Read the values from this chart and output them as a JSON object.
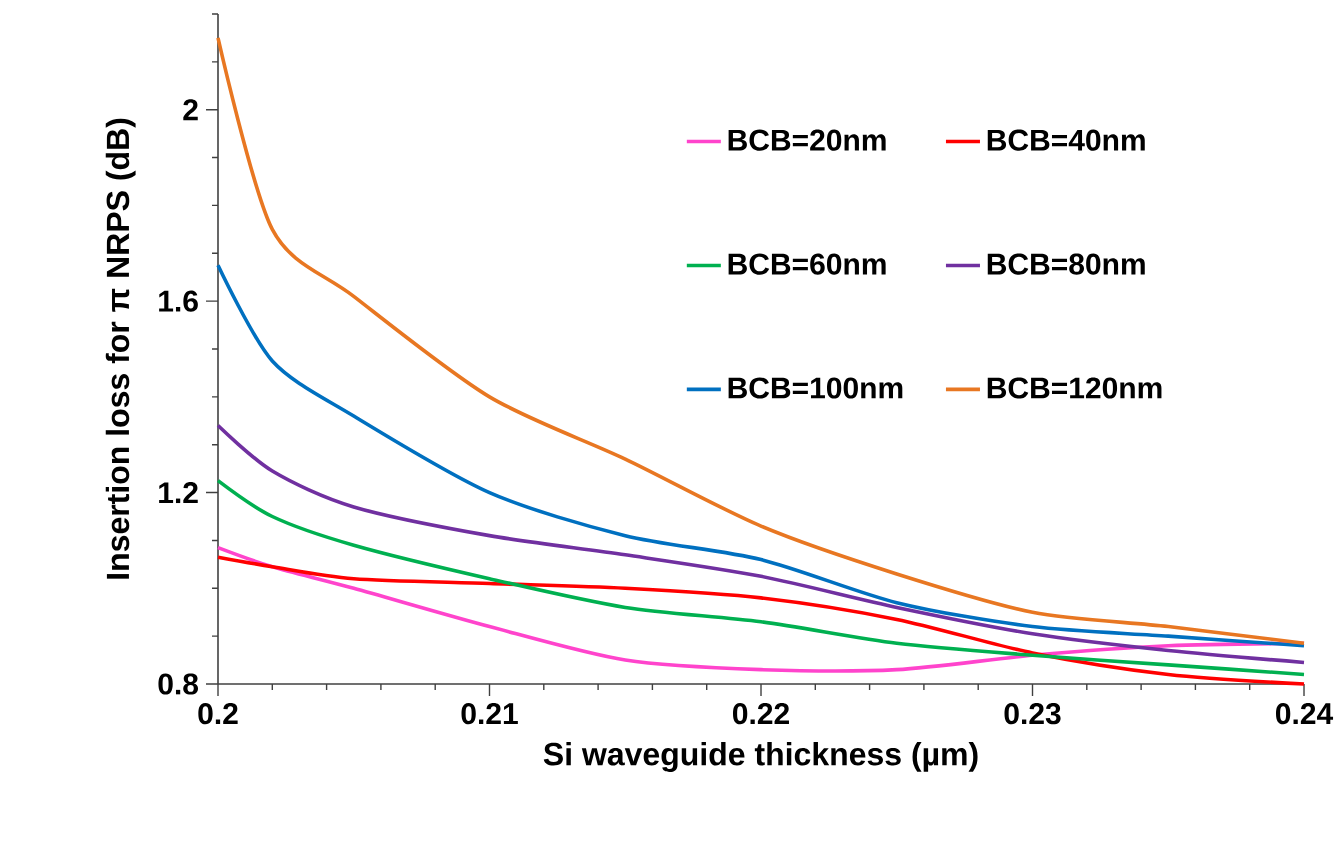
{
  "chart_data": {
    "type": "line",
    "xlabel": "Si waveguide thickness (µm)",
    "ylabel": "Insertion loss for π NRPS (dB)",
    "xlim": [
      0.2,
      0.24
    ],
    "ylim": [
      0.8,
      2.2
    ],
    "xticks": [
      0.2,
      {
        "value": 0.202,
        "label": null
      },
      {
        "value": 0.204,
        "label": null
      },
      {
        "value": 0.206,
        "label": null
      },
      {
        "value": 0.208,
        "label": null
      },
      0.21,
      {
        "value": 0.212,
        "label": null
      },
      {
        "value": 0.214,
        "label": null
      },
      {
        "value": 0.216,
        "label": null
      },
      {
        "value": 0.218,
        "label": null
      },
      0.22,
      {
        "value": 0.222,
        "label": null
      },
      {
        "value": 0.224,
        "label": null
      },
      {
        "value": 0.226,
        "label": null
      },
      {
        "value": 0.228,
        "label": null
      },
      0.23,
      {
        "value": 0.232,
        "label": null
      },
      {
        "value": 0.234,
        "label": null
      },
      {
        "value": 0.236,
        "label": null
      },
      {
        "value": 0.238,
        "label": null
      },
      0.24
    ],
    "yticks": [
      0.8,
      {
        "value": 0.9,
        "label": null
      },
      {
        "value": 1.0,
        "label": null
      },
      {
        "value": 1.1,
        "label": null
      },
      1.2,
      {
        "value": 1.3,
        "label": null
      },
      {
        "value": 1.4,
        "label": null
      },
      {
        "value": 1.5,
        "label": null
      },
      1.6,
      {
        "value": 1.7,
        "label": null
      },
      {
        "value": 1.8,
        "label": null
      },
      {
        "value": 1.9,
        "label": null
      },
      2,
      {
        "value": 2.1,
        "label": null
      },
      {
        "value": 2.2,
        "label": null
      }
    ],
    "x": [
      0.2,
      0.202,
      0.205,
      0.21,
      0.215,
      0.22,
      0.225,
      0.23,
      0.235,
      0.24
    ],
    "legend": "top right",
    "grid": false,
    "marker": "none",
    "line_style": "solid",
    "series": [
      {
        "name": "BCB=20nm",
        "color": "#ff44cc",
        "values": [
          1.085,
          1.045,
          1.0,
          0.92,
          0.85,
          0.83,
          0.83,
          0.86,
          0.88,
          0.885
        ]
      },
      {
        "name": "BCB=40nm",
        "color": "#ff0000",
        "values": [
          1.065,
          1.045,
          1.02,
          1.01,
          1.0,
          0.98,
          0.935,
          0.865,
          0.82,
          0.8
        ]
      },
      {
        "name": "BCB=60nm",
        "color": "#00b050",
        "values": [
          1.225,
          1.15,
          1.09,
          1.02,
          0.96,
          0.93,
          0.885,
          0.86,
          0.84,
          0.82
        ]
      },
      {
        "name": "BCB=80nm",
        "color": "#7030a0",
        "values": [
          1.34,
          1.245,
          1.17,
          1.11,
          1.07,
          1.025,
          0.96,
          0.905,
          0.87,
          0.845
        ]
      },
      {
        "name": "BCB=100nm",
        "color": "#0070c0",
        "values": [
          1.675,
          1.475,
          1.36,
          1.2,
          1.11,
          1.06,
          0.97,
          0.92,
          0.9,
          0.88
        ]
      },
      {
        "name": "BCB=120nm",
        "color": "#e87722",
        "values": [
          2.15,
          1.75,
          1.61,
          1.4,
          1.27,
          1.13,
          1.03,
          0.95,
          0.92,
          0.885
        ]
      }
    ]
  }
}
